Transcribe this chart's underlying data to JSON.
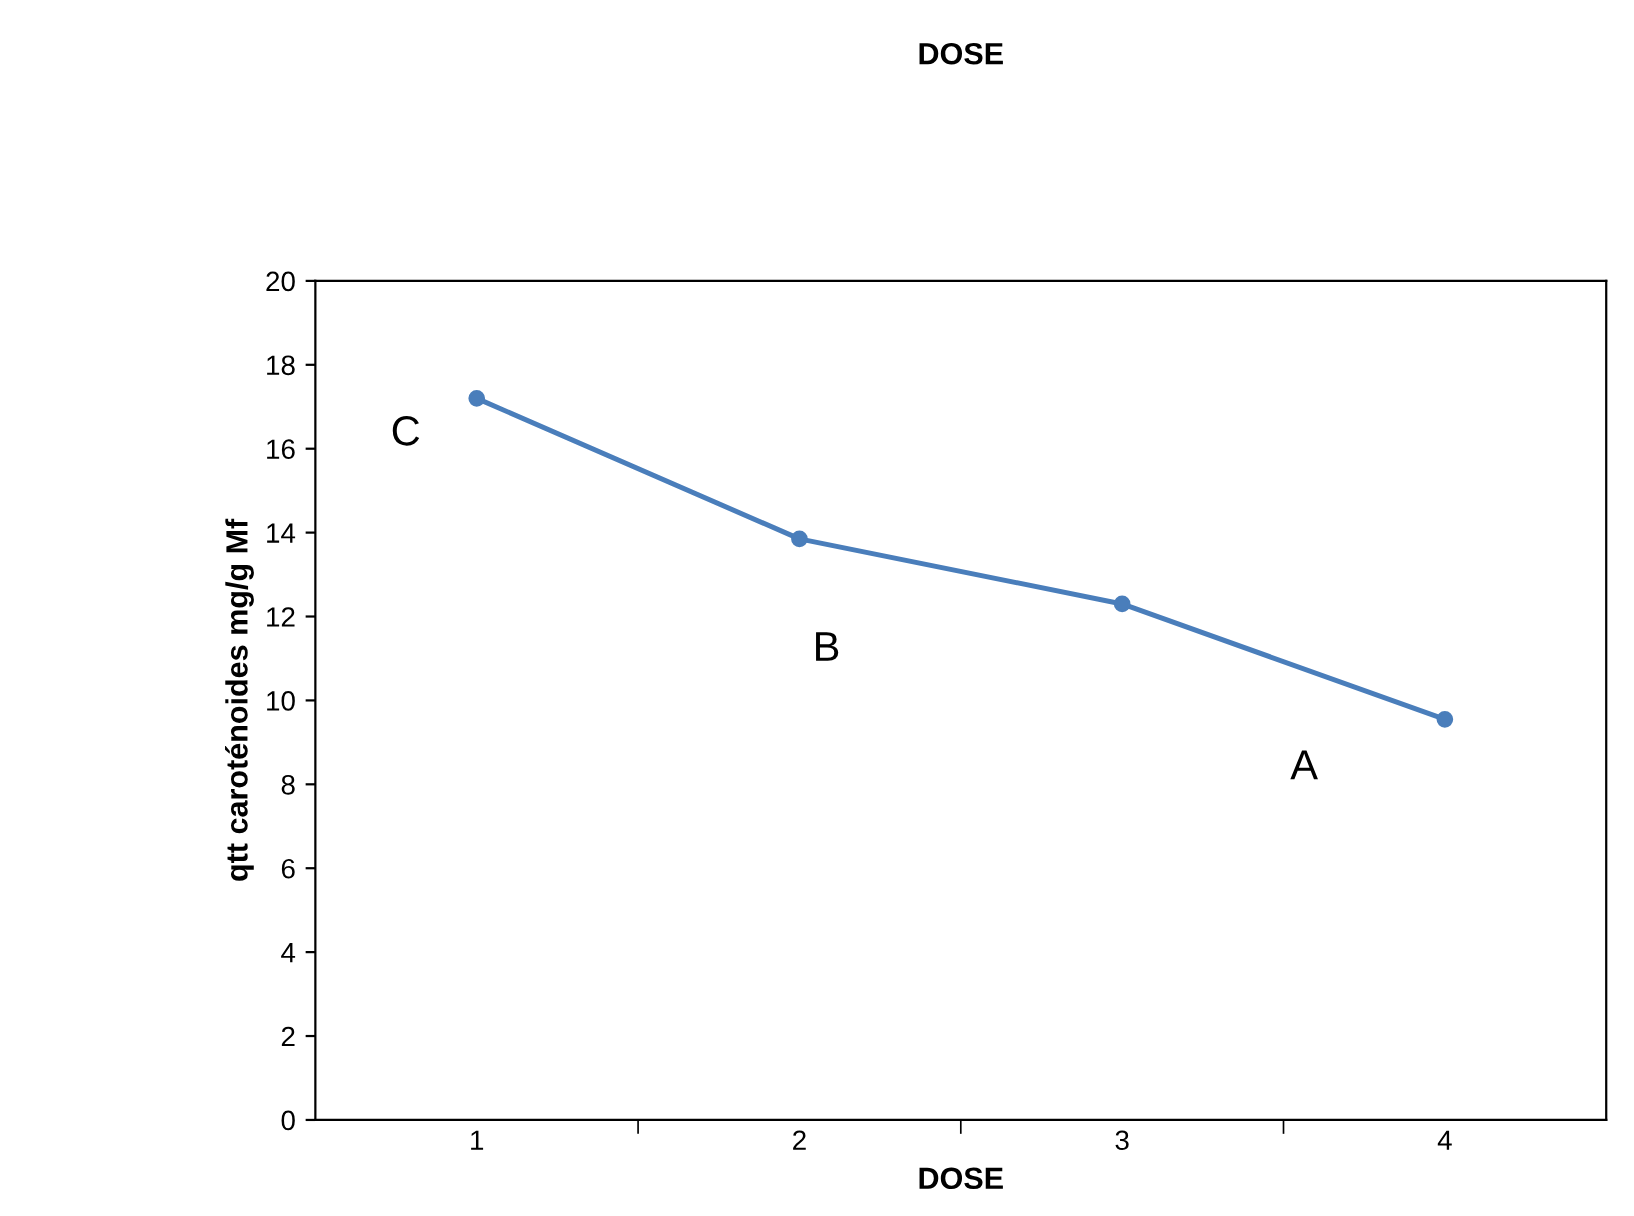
{
  "chart_data": {
    "type": "line",
    "title": "DOSE",
    "xlabel": "DOSE",
    "ylabel": "qtt caroténoides mg/g Mf",
    "categories": [
      "1",
      "2",
      "3",
      "4"
    ],
    "series": [
      {
        "color": "#4a7ebb",
        "values": [
          17.2,
          13.85,
          12.3,
          9.55
        ]
      }
    ],
    "ylim": [
      0,
      20
    ],
    "yticks": [
      0,
      2,
      4,
      6,
      8,
      10,
      12,
      14,
      16,
      18,
      20
    ],
    "grid": false,
    "legend": false,
    "marker": "circle",
    "line_style": "solid",
    "annotations": [
      "C",
      "B",
      "A"
    ]
  }
}
